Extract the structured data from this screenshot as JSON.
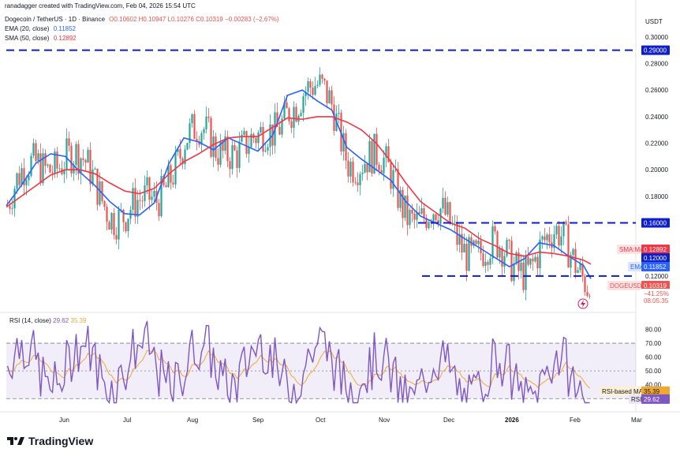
{
  "header": {
    "creator": "ranadagger created with TradingView.com, Feb 04, 2026 15:54 UTC",
    "symbol": "Dogecoin / TetherUS · 1D · Binance",
    "ohlc": "O0.10602 H0.10947 L0.10276 C0.10319 −0.00283 (−2.67%)",
    "ema_label": "EMA (20, close)",
    "ema_value": "0.11852",
    "sma_label": "SMA (50, close)",
    "sma_value": "0.12892",
    "currency": "USDT"
  },
  "rsi": {
    "label": "RSI (14, close)",
    "value": "29.62",
    "ma_value": "35.39"
  },
  "footer": {
    "brand": "TradingView"
  },
  "colors": {
    "up": "#26a69a",
    "down": "#ef5350",
    "ema": "#2962ff",
    "sma": "#f23645",
    "rsi": "#7e57c2",
    "rsi_ma": "#f0a830",
    "level": "#0d1ecc"
  },
  "chart_data": {
    "type": "candlestick",
    "x_tick_labels": [
      "Jun",
      "Jul",
      "Aug",
      "Sep",
      "Oct",
      "Nov",
      "Dec",
      "2026",
      "Feb",
      "Mar"
    ],
    "y_ticks": [
      0.3,
      0.28,
      0.26,
      0.24,
      0.22,
      0.2,
      0.18,
      0.16,
      0.14,
      0.12
    ],
    "y_tick_labels": [
      "0.30000",
      "0.28000",
      "0.26000",
      "0.24000",
      "0.22000",
      "0.20000",
      "0.18000",
      "0.16000",
      "0.14000",
      "0.12000"
    ],
    "ylim": [
      0.095,
      0.31
    ],
    "levels": [
      {
        "value": 0.29,
        "label": "0.29000"
      },
      {
        "value": 0.16,
        "label": "0.16000"
      },
      {
        "value": 0.12,
        "label": "0.12000"
      }
    ],
    "price_tags": [
      {
        "name": "SMA:MA",
        "value": "0.12892"
      },
      {
        "name": "",
        "value": "0.12000"
      },
      {
        "name": "EMA",
        "value": "0.11852"
      },
      {
        "name": "DOGEUSDT",
        "value": "0.10319",
        "extra": [
          "−41.25%",
          "08:05:35"
        ]
      }
    ],
    "ema_path": [
      [
        0,
        0.173
      ],
      [
        10,
        0.188
      ],
      [
        20,
        0.205
      ],
      [
        30,
        0.212
      ],
      [
        40,
        0.21
      ],
      [
        50,
        0.198
      ],
      [
        60,
        0.188
      ],
      [
        70,
        0.176
      ],
      [
        80,
        0.167
      ],
      [
        90,
        0.166
      ],
      [
        100,
        0.175
      ],
      [
        110,
        0.205
      ],
      [
        120,
        0.224
      ],
      [
        130,
        0.221
      ],
      [
        140,
        0.215
      ],
      [
        150,
        0.224
      ],
      [
        160,
        0.219
      ],
      [
        170,
        0.214
      ],
      [
        180,
        0.226
      ],
      [
        190,
        0.256
      ],
      [
        200,
        0.26
      ],
      [
        210,
        0.252
      ],
      [
        220,
        0.245
      ],
      [
        230,
        0.217
      ],
      [
        240,
        0.208
      ],
      [
        250,
        0.2
      ],
      [
        260,
        0.192
      ],
      [
        270,
        0.176
      ],
      [
        280,
        0.165
      ],
      [
        290,
        0.16
      ],
      [
        300,
        0.155
      ],
      [
        310,
        0.148
      ],
      [
        320,
        0.141
      ],
      [
        330,
        0.134
      ],
      [
        340,
        0.127
      ],
      [
        350,
        0.133
      ],
      [
        360,
        0.145
      ],
      [
        370,
        0.143
      ],
      [
        380,
        0.135
      ],
      [
        390,
        0.128
      ],
      [
        395,
        0.118
      ]
    ],
    "sma_path": [
      [
        0,
        0.172
      ],
      [
        10,
        0.18
      ],
      [
        20,
        0.188
      ],
      [
        30,
        0.196
      ],
      [
        40,
        0.2
      ],
      [
        50,
        0.2
      ],
      [
        60,
        0.197
      ],
      [
        70,
        0.19
      ],
      [
        80,
        0.184
      ],
      [
        90,
        0.182
      ],
      [
        100,
        0.186
      ],
      [
        110,
        0.197
      ],
      [
        120,
        0.206
      ],
      [
        130,
        0.212
      ],
      [
        140,
        0.219
      ],
      [
        150,
        0.224
      ],
      [
        160,
        0.225
      ],
      [
        170,
        0.225
      ],
      [
        180,
        0.232
      ],
      [
        190,
        0.239
      ],
      [
        200,
        0.238
      ],
      [
        210,
        0.24
      ],
      [
        220,
        0.24
      ],
      [
        230,
        0.236
      ],
      [
        240,
        0.23
      ],
      [
        250,
        0.22
      ],
      [
        260,
        0.206
      ],
      [
        270,
        0.19
      ],
      [
        280,
        0.176
      ],
      [
        290,
        0.168
      ],
      [
        300,
        0.16
      ],
      [
        310,
        0.156
      ],
      [
        320,
        0.148
      ],
      [
        330,
        0.143
      ],
      [
        340,
        0.137
      ],
      [
        350,
        0.135
      ],
      [
        360,
        0.138
      ],
      [
        370,
        0.137
      ],
      [
        380,
        0.135
      ],
      [
        390,
        0.132
      ],
      [
        395,
        0.129
      ]
    ],
    "rsi_ticks": [
      80,
      70,
      60,
      50,
      40
    ],
    "rsi_tick_labels": [
      "80.00",
      "70.00",
      "60.00",
      "50.00",
      "40.00"
    ],
    "rsi_ylim": [
      25,
      90
    ],
    "rsi_band": [
      30,
      70
    ],
    "rsi_midline": 50
  }
}
